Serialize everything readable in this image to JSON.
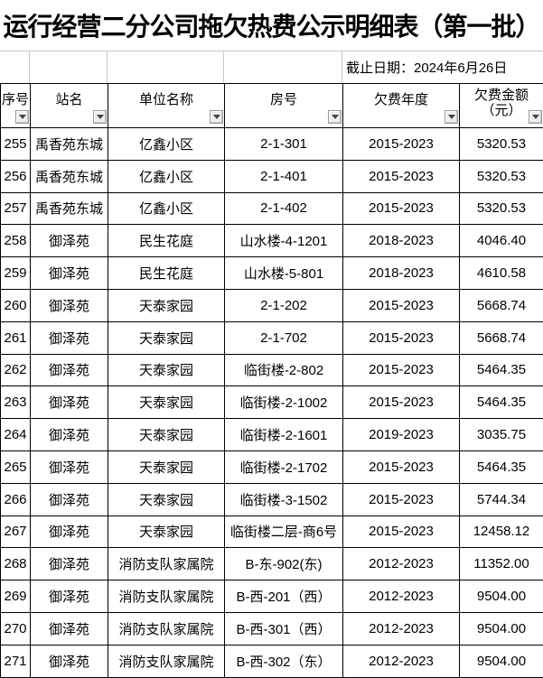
{
  "title": "运行经营二分公司拖欠热费公示明细表（第一批）",
  "cutoff_date": "截止日期：2024年6月26日",
  "table": {
    "columns": [
      {
        "label": "序号",
        "filter_icon": "dropdown-arrow"
      },
      {
        "label": "站名",
        "filter_icon": "dropdown-arrow"
      },
      {
        "label": "单位名称",
        "filter_icon": "dropdown-arrow"
      },
      {
        "label": "房号",
        "filter_icon": "dropdown-arrow"
      },
      {
        "label": "欠费年度",
        "filter_icon": "dropdown-arrow"
      },
      {
        "label": "欠费金额",
        "label2": "（元）",
        "filter_icon": "dropdown-arrow"
      }
    ],
    "rows": [
      [
        "255",
        "禹香苑东城",
        "亿鑫小区",
        "2-1-301",
        "2015-2023",
        "5320.53"
      ],
      [
        "256",
        "禹香苑东城",
        "亿鑫小区",
        "2-1-401",
        "2015-2023",
        "5320.53"
      ],
      [
        "257",
        "禹香苑东城",
        "亿鑫小区",
        "2-1-402",
        "2015-2023",
        "5320.53"
      ],
      [
        "258",
        "御泽苑",
        "民生花庭",
        "山水楼-4-1201",
        "2018-2023",
        "4046.40"
      ],
      [
        "259",
        "御泽苑",
        "民生花庭",
        "山水楼-5-801",
        "2018-2023",
        "4610.58"
      ],
      [
        "260",
        "御泽苑",
        "天泰家园",
        "2-1-202",
        "2015-2023",
        "5668.74"
      ],
      [
        "261",
        "御泽苑",
        "天泰家园",
        "2-1-702",
        "2015-2023",
        "5668.74"
      ],
      [
        "262",
        "御泽苑",
        "天泰家园",
        "临街楼-2-802",
        "2015-2023",
        "5464.35"
      ],
      [
        "263",
        "御泽苑",
        "天泰家园",
        "临街楼-2-1002",
        "2015-2023",
        "5464.35"
      ],
      [
        "264",
        "御泽苑",
        "天泰家园",
        "临街楼-2-1601",
        "2019-2023",
        "3035.75"
      ],
      [
        "265",
        "御泽苑",
        "天泰家园",
        "临街楼-2-1702",
        "2015-2023",
        "5464.35"
      ],
      [
        "266",
        "御泽苑",
        "天泰家园",
        "临街楼-3-1502",
        "2015-2023",
        "5744.34"
      ],
      [
        "267",
        "御泽苑",
        "天泰家园",
        "临街楼二层-商6号",
        "2015-2023",
        "12458.12"
      ],
      [
        "268",
        "御泽苑",
        "消防支队家属院",
        "B-东-902(东)",
        "2012-2023",
        "11352.00"
      ],
      [
        "269",
        "御泽苑",
        "消防支队家属院",
        "B-西-201（西）",
        "2012-2023",
        "9504.00"
      ],
      [
        "270",
        "御泽苑",
        "消防支队家属院",
        "B-西-301（西）",
        "2012-2023",
        "9504.00"
      ],
      [
        "271",
        "御泽苑",
        "消防支队家属院",
        "B-西-302（东）",
        "2012-2023",
        "9504.00"
      ]
    ]
  }
}
